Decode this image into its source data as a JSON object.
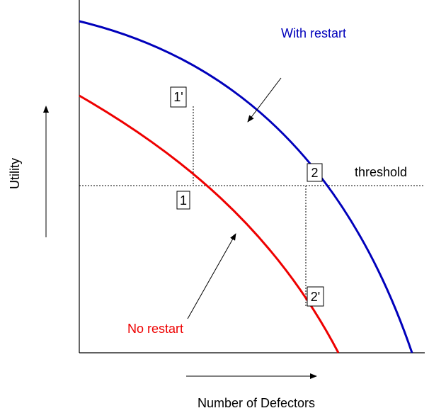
{
  "diagram": {
    "curves": {
      "with_restart": "With restart",
      "no_restart": "No restart"
    },
    "threshold": "threshold",
    "points": [
      "1'",
      "1",
      "2",
      "2'"
    ],
    "axes": {
      "x_label": "Number of Defectors",
      "y_label": "Utility"
    }
  }
}
